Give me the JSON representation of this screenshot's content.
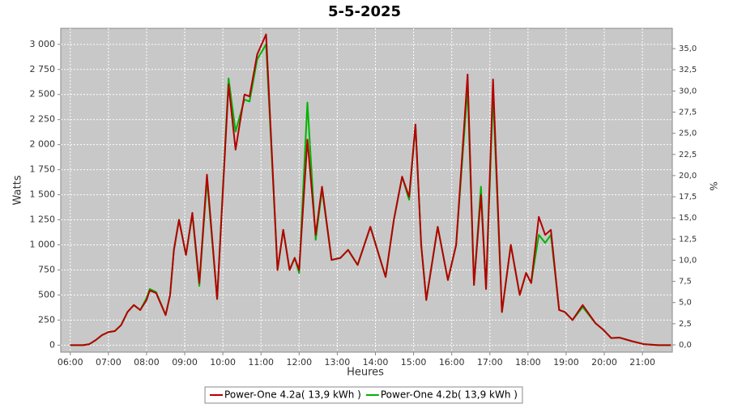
{
  "chart_data": {
    "type": "line",
    "title": "5-5-2025",
    "x_label": "Heures",
    "y_label": "Watts",
    "y2_label": "%",
    "x": [
      360,
      380,
      390,
      400,
      410,
      420,
      430,
      440,
      450,
      460,
      470,
      480,
      485,
      495,
      510,
      517,
      523,
      531,
      542,
      552,
      563,
      575,
      591,
      609,
      620,
      634,
      642,
      654,
      668,
      686,
      695,
      705,
      713,
      720,
      733,
      746,
      756,
      771,
      785,
      797,
      812,
      832,
      843,
      856,
      869,
      882,
      893,
      903,
      912,
      920,
      938,
      954,
      967,
      985,
      995,
      1006,
      1014,
      1025,
      1039,
      1053,
      1067,
      1077,
      1085,
      1097,
      1107,
      1116,
      1129,
      1138,
      1150,
      1166,
      1186,
      1199,
      1211,
      1224,
      1243,
      1262,
      1285,
      1305
    ],
    "series": [
      {
        "name": "Power-One 4.2a( 13,9 kWh )",
        "color": "#b40000",
        "values": [
          0,
          0,
          10,
          50,
          100,
          130,
          140,
          200,
          330,
          400,
          350,
          450,
          545,
          520,
          300,
          500,
          950,
          1250,
          900,
          1320,
          620,
          1700,
          460,
          2600,
          1950,
          2500,
          2480,
          2900,
          3100,
          750,
          1150,
          750,
          870,
          750,
          2050,
          1100,
          1580,
          850,
          870,
          950,
          800,
          1180,
          950,
          680,
          1250,
          1680,
          1480,
          2200,
          1000,
          450,
          1180,
          650,
          1000,
          2700,
          600,
          1500,
          560,
          2650,
          330,
          1000,
          500,
          720,
          620,
          1280,
          1100,
          1150,
          350,
          330,
          250,
          400,
          220,
          150,
          70,
          75,
          40,
          10,
          0,
          0
        ]
      },
      {
        "name": "Power-One 4.2b( 13,9 kWh )",
        "color": "#00b400",
        "values": [
          0,
          0,
          10,
          50,
          100,
          130,
          140,
          200,
          330,
          400,
          350,
          470,
          560,
          530,
          300,
          500,
          950,
          1250,
          900,
          1300,
          590,
          1650,
          460,
          2660,
          2130,
          2450,
          2430,
          2850,
          3000,
          750,
          1150,
          750,
          870,
          720,
          2420,
          1050,
          1550,
          850,
          870,
          950,
          800,
          1180,
          950,
          680,
          1250,
          1680,
          1450,
          2200,
          1000,
          450,
          1180,
          650,
          1000,
          2570,
          600,
          1580,
          560,
          2500,
          330,
          1000,
          500,
          720,
          620,
          1100,
          1020,
          1100,
          350,
          330,
          250,
          380,
          220,
          150,
          70,
          75,
          40,
          10,
          0,
          0
        ]
      }
    ],
    "xlim": [
      345,
      1307
    ],
    "ylim": [
      -70,
      3160
    ],
    "y2lim": [
      -0.86,
      37.4
    ],
    "xticks": [
      {
        "value": 360,
        "label": "06:00"
      },
      {
        "value": 420,
        "label": "07:00"
      },
      {
        "value": 480,
        "label": "08:00"
      },
      {
        "value": 540,
        "label": "09:00"
      },
      {
        "value": 600,
        "label": "10:00"
      },
      {
        "value": 660,
        "label": "11:00"
      },
      {
        "value": 720,
        "label": "12:00"
      },
      {
        "value": 780,
        "label": "13:00"
      },
      {
        "value": 840,
        "label": "14:00"
      },
      {
        "value": 900,
        "label": "15:00"
      },
      {
        "value": 960,
        "label": "16:00"
      },
      {
        "value": 1020,
        "label": "17:00"
      },
      {
        "value": 1080,
        "label": "18:00"
      },
      {
        "value": 1140,
        "label": "19:00"
      },
      {
        "value": 1200,
        "label": "20:00"
      },
      {
        "value": 1260,
        "label": "21:00"
      }
    ],
    "yticks": [
      0,
      250,
      500,
      750,
      {
        "value": 1000,
        "label": "1 000"
      },
      {
        "value": 1250,
        "label": "1 250"
      },
      {
        "value": 1500,
        "label": "1 500"
      },
      {
        "value": 1750,
        "label": "1 750"
      },
      {
        "value": 2000,
        "label": "2 000"
      },
      {
        "value": 2250,
        "label": "2 250"
      },
      {
        "value": 2500,
        "label": "2 500"
      },
      {
        "value": 2750,
        "label": "2 750"
      },
      {
        "value": 3000,
        "label": "3 000"
      }
    ],
    "y2ticks": [
      {
        "value": 0,
        "label": "0,0"
      },
      {
        "value": 2.5,
        "label": "2,5"
      },
      {
        "value": 5,
        "label": "5,0"
      },
      {
        "value": 7.5,
        "label": "7,5"
      },
      {
        "value": 10,
        "label": "10,0"
      },
      {
        "value": 12.5,
        "label": "12,5"
      },
      {
        "value": 15,
        "label": "15,0"
      },
      {
        "value": 17.5,
        "label": "17,5"
      },
      {
        "value": 20,
        "label": "20,0"
      },
      {
        "value": 22.5,
        "label": "22,5"
      },
      {
        "value": 25,
        "label": "25,0"
      },
      {
        "value": 27.5,
        "label": "27,5"
      },
      {
        "value": 30,
        "label": "30,0"
      },
      {
        "value": 32.5,
        "label": "32,5"
      },
      {
        "value": 35,
        "label": "35,0"
      }
    ],
    "grid": true,
    "legend": "bottom",
    "plot_background": "#c8c8c8"
  }
}
